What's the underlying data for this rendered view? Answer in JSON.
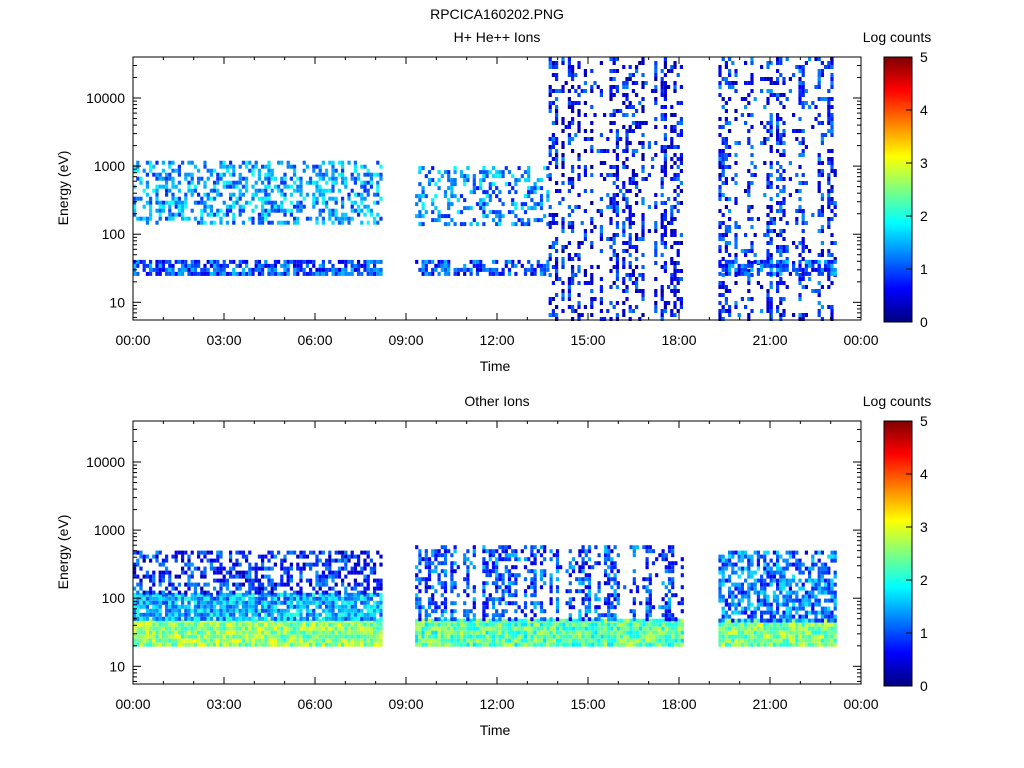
{
  "figure": {
    "title": "RPCICA160202.PNG"
  },
  "chart_data": [
    {
      "type": "heatmap",
      "title": "H+ He++ Ions",
      "xlabel": "Time",
      "ylabel": "Energy (eV)",
      "x_ticks": [
        "00:00",
        "03:00",
        "06:00",
        "09:00",
        "12:00",
        "15:00",
        "18:00",
        "21:00",
        "00:00"
      ],
      "y_ticks": [
        "10",
        "100",
        "1000",
        "10000"
      ],
      "y_scale": "log",
      "xlim_hours": [
        0,
        24
      ],
      "ylim": [
        5.5,
        40000
      ],
      "colorbar": {
        "label": "Log counts",
        "ticks": [
          "0",
          "1",
          "2",
          "3",
          "4",
          "5"
        ],
        "range": [
          0,
          5
        ]
      },
      "data_segments_hours": [
        [
          0,
          8.2
        ],
        [
          9.3,
          18.1
        ],
        [
          19.3,
          23.2
        ]
      ],
      "bands": [
        {
          "from_h": 0,
          "to_h": 8.2,
          "e_low": 25,
          "e_high": 42,
          "level": 1.0,
          "density": 0.75
        },
        {
          "from_h": 0,
          "to_h": 8.2,
          "e_low": 150,
          "e_high": 1200,
          "level": 1.4,
          "density": 0.45
        },
        {
          "from_h": 9.3,
          "to_h": 13.7,
          "e_low": 25,
          "e_high": 42,
          "level": 0.9,
          "density": 0.6
        },
        {
          "from_h": 9.3,
          "to_h": 13.7,
          "e_low": 150,
          "e_high": 1000,
          "level": 1.3,
          "density": 0.35
        },
        {
          "from_h": 13.7,
          "to_h": 18.1,
          "e_low": 5.5,
          "e_high": 40000,
          "level": 0.7,
          "density": 0.4,
          "streaks": true
        },
        {
          "from_h": 19.3,
          "to_h": 23.2,
          "e_low": 5.5,
          "e_high": 40000,
          "level": 0.8,
          "density": 0.45,
          "streaks": true
        },
        {
          "from_h": 19.3,
          "to_h": 23.2,
          "e_low": 25,
          "e_high": 42,
          "level": 1.0,
          "density": 0.7
        }
      ]
    },
    {
      "type": "heatmap",
      "title": "Other Ions",
      "xlabel": "Time",
      "ylabel": "Energy (eV)",
      "x_ticks": [
        "00:00",
        "03:00",
        "06:00",
        "09:00",
        "12:00",
        "15:00",
        "18:00",
        "21:00",
        "00:00"
      ],
      "y_ticks": [
        "10",
        "100",
        "1000",
        "10000"
      ],
      "y_scale": "log",
      "xlim_hours": [
        0,
        24
      ],
      "ylim": [
        5.5,
        40000
      ],
      "colorbar": {
        "label": "Log counts",
        "ticks": [
          "0",
          "1",
          "2",
          "3",
          "4",
          "5"
        ],
        "range": [
          0,
          5
        ]
      },
      "data_segments_hours": [
        [
          0,
          8.2
        ],
        [
          9.3,
          18.1
        ],
        [
          19.3,
          23.2
        ]
      ],
      "bands": [
        {
          "from_h": 0,
          "to_h": 8.2,
          "e_low": 22,
          "e_high": 50,
          "level": 2.6,
          "density": 1.0
        },
        {
          "from_h": 0,
          "to_h": 8.2,
          "e_low": 50,
          "e_high": 120,
          "level": 1.5,
          "density": 0.9
        },
        {
          "from_h": 0,
          "to_h": 8.2,
          "e_low": 120,
          "e_high": 500,
          "level": 0.8,
          "density": 0.5
        },
        {
          "from_h": 9.3,
          "to_h": 18.1,
          "e_low": 22,
          "e_high": 50,
          "level": 2.3,
          "density": 1.0
        },
        {
          "from_h": 9.3,
          "to_h": 18.1,
          "e_low": 50,
          "e_high": 600,
          "level": 1.0,
          "density": 0.55,
          "streaks": true
        },
        {
          "from_h": 19.3,
          "to_h": 23.2,
          "e_low": 22,
          "e_high": 50,
          "level": 2.5,
          "density": 1.0
        },
        {
          "from_h": 19.3,
          "to_h": 23.2,
          "e_low": 50,
          "e_high": 500,
          "level": 1.2,
          "density": 0.65
        }
      ]
    }
  ]
}
